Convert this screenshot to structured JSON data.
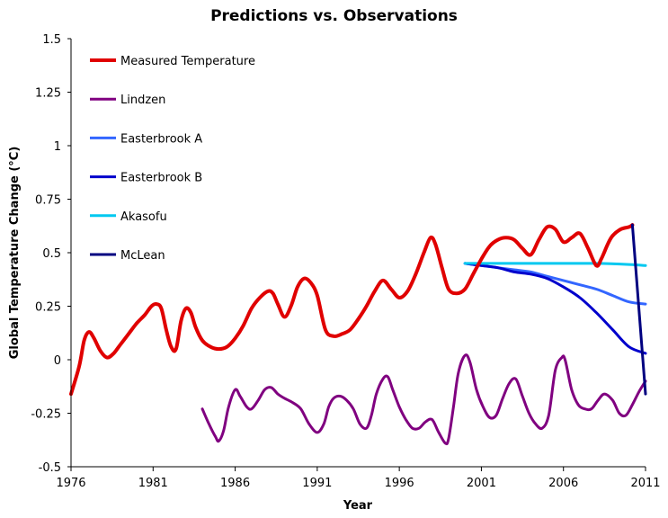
{
  "chart_data": {
    "type": "line",
    "title": "Predictions vs. Observations",
    "xlabel": "Year",
    "ylabel": "Global Temperature Change (°C)",
    "xlim": [
      1976,
      2011
    ],
    "ylim": [
      -0.5,
      1.5
    ],
    "xticks": [
      "1976",
      "1981",
      "1986",
      "1991",
      "1996",
      "2001",
      "2006",
      "2011"
    ],
    "xtick_values": [
      1976,
      1981,
      1986,
      1991,
      1996,
      2001,
      2006,
      2011
    ],
    "yticks": [
      "-0.5",
      "-0.25",
      "0",
      "0.25",
      "0.5",
      "0.75",
      "1",
      "1.25",
      "1.5"
    ],
    "ytick_values": [
      -0.5,
      -0.25,
      0,
      0.25,
      0.5,
      0.75,
      1,
      1.25,
      1.5
    ],
    "legend_position": "top-left",
    "series": [
      {
        "name": "Measured Temperature",
        "color": "#e00000",
        "x": [
          1976,
          1976.5,
          1976.8,
          1977.1,
          1977.4,
          1977.8,
          1978.2,
          1978.6,
          1979,
          1979.5,
          1980,
          1980.5,
          1980.9,
          1981.2,
          1981.5,
          1981.8,
          1982.1,
          1982.4,
          1982.7,
          1983,
          1983.3,
          1983.6,
          1984,
          1984.5,
          1985,
          1985.5,
          1986,
          1986.5,
          1987,
          1987.5,
          1988,
          1988.3,
          1988.6,
          1989,
          1989.4,
          1989.8,
          1990.2,
          1990.6,
          1991,
          1991.5,
          1992,
          1992.5,
          1993,
          1993.5,
          1994,
          1994.5,
          1995,
          1995.5,
          1996,
          1996.5,
          1997,
          1997.5,
          1997.9,
          1998.2,
          1998.6,
          1999,
          1999.5,
          2000,
          2000.5,
          2001,
          2001.5,
          2002,
          2002.5,
          2003,
          2003.5,
          2004,
          2004.5,
          2005,
          2005.5,
          2006,
          2006.5,
          2007,
          2007.5,
          2008,
          2008.3,
          2008.7,
          2009,
          2009.5,
          2010,
          2010.2
        ],
        "y": [
          -0.16,
          -0.03,
          0.09,
          0.13,
          0.1,
          0.04,
          0.01,
          0.03,
          0.07,
          0.12,
          0.17,
          0.21,
          0.25,
          0.26,
          0.24,
          0.14,
          0.06,
          0.05,
          0.18,
          0.24,
          0.22,
          0.15,
          0.09,
          0.06,
          0.05,
          0.06,
          0.1,
          0.16,
          0.24,
          0.29,
          0.32,
          0.31,
          0.26,
          0.2,
          0.25,
          0.34,
          0.38,
          0.36,
          0.3,
          0.14,
          0.11,
          0.12,
          0.14,
          0.19,
          0.25,
          0.32,
          0.37,
          0.33,
          0.29,
          0.32,
          0.4,
          0.5,
          0.57,
          0.54,
          0.43,
          0.33,
          0.31,
          0.33,
          0.4,
          0.47,
          0.53,
          0.56,
          0.57,
          0.56,
          0.52,
          0.49,
          0.56,
          0.62,
          0.61,
          0.55,
          0.57,
          0.59,
          0.52,
          0.44,
          0.47,
          0.54,
          0.58,
          0.61,
          0.62,
          0.63
        ]
      },
      {
        "name": "Lindzen",
        "color": "#800080",
        "x": [
          1984,
          1984.4,
          1984.8,
          1985,
          1985.3,
          1985.6,
          1986,
          1986.3,
          1986.7,
          1987,
          1987.4,
          1987.8,
          1988.2,
          1988.6,
          1989,
          1989.5,
          1990,
          1990.5,
          1991,
          1991.4,
          1991.7,
          1992,
          1992.4,
          1992.8,
          1993.2,
          1993.6,
          1994,
          1994.3,
          1994.6,
          1995,
          1995.3,
          1995.6,
          1996,
          1996.4,
          1996.8,
          1997.2,
          1997.6,
          1998,
          1998.4,
          1998.8,
          1999,
          1999.3,
          1999.6,
          2000,
          2000.3,
          2000.7,
          2001.1,
          2001.5,
          2001.9,
          2002.3,
          2002.7,
          2003.1,
          2003.5,
          2003.9,
          2004.3,
          2004.7,
          2005.1,
          2005.5,
          2005.9,
          2006.1,
          2006.5,
          2006.9,
          2007.3,
          2007.7,
          2008.1,
          2008.5,
          2009,
          2009.4,
          2009.8,
          2010.2,
          2010.6,
          2011
        ],
        "y": [
          -0.23,
          -0.3,
          -0.36,
          -0.38,
          -0.33,
          -0.22,
          -0.14,
          -0.17,
          -0.22,
          -0.23,
          -0.19,
          -0.14,
          -0.13,
          -0.16,
          -0.18,
          -0.2,
          -0.23,
          -0.3,
          -0.34,
          -0.3,
          -0.22,
          -0.18,
          -0.17,
          -0.19,
          -0.23,
          -0.3,
          -0.32,
          -0.26,
          -0.16,
          -0.09,
          -0.08,
          -0.14,
          -0.22,
          -0.28,
          -0.32,
          -0.32,
          -0.29,
          -0.28,
          -0.34,
          -0.39,
          -0.37,
          -0.22,
          -0.06,
          0.02,
          -0.01,
          -0.14,
          -0.22,
          -0.27,
          -0.26,
          -0.18,
          -0.11,
          -0.09,
          -0.17,
          -0.25,
          -0.3,
          -0.32,
          -0.26,
          -0.05,
          0.01,
          0.0,
          -0.14,
          -0.21,
          -0.23,
          -0.23,
          -0.19,
          -0.16,
          -0.19,
          -0.25,
          -0.26,
          -0.21,
          -0.15,
          -0.1
        ]
      },
      {
        "name": "Easterbrook A",
        "color": "#3366ff",
        "x": [
          2000,
          2001,
          2002,
          2003,
          2004,
          2005,
          2006,
          2007,
          2008,
          2009,
          2010,
          2011
        ],
        "y": [
          0.45,
          0.44,
          0.43,
          0.42,
          0.41,
          0.39,
          0.37,
          0.35,
          0.33,
          0.3,
          0.27,
          0.26
        ]
      },
      {
        "name": "Easterbrook B",
        "color": "#0000cc",
        "x": [
          2000,
          2001,
          2002,
          2003,
          2004,
          2005,
          2006,
          2007,
          2008,
          2009,
          2010,
          2011
        ],
        "y": [
          0.45,
          0.44,
          0.43,
          0.41,
          0.4,
          0.38,
          0.34,
          0.29,
          0.22,
          0.14,
          0.06,
          0.03
        ]
      },
      {
        "name": "Akasofu",
        "color": "#00c8f0",
        "x": [
          2000,
          2002,
          2004,
          2006,
          2008,
          2010,
          2011
        ],
        "y": [
          0.45,
          0.45,
          0.45,
          0.45,
          0.45,
          0.445,
          0.44
        ]
      },
      {
        "name": "McLean",
        "color": "#000080",
        "x": [
          2010.2,
          2011
        ],
        "y": [
          0.63,
          -0.16
        ]
      }
    ]
  }
}
